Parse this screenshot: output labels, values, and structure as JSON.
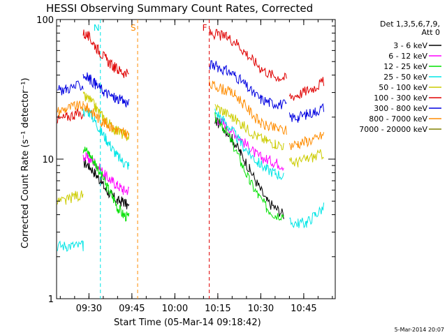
{
  "chart_data": {
    "type": "line",
    "title": "HESSI Observing Summary Count Rates, Corrected",
    "xlabel": "Start Time (05-Mar-14 09:18:42)",
    "ylabel": "Corrected Count Rate (s⁻¹ detector⁻¹)",
    "x_range": [
      "09:18:42",
      "10:56:00"
    ],
    "y_range": [
      1,
      100
    ],
    "y_scale": "log",
    "x_ticks": [
      "09:30",
      "09:45",
      "10:00",
      "10:15",
      "10:30",
      "10:45"
    ],
    "y_ticks": [
      "1",
      "10",
      "100"
    ],
    "legend_header": [
      "Det 1,3,5,6,7,9,",
      "Att 0"
    ],
    "legend_position": "right",
    "timestamp": "5-Mar-2014 20:07",
    "markers": [
      {
        "label": "N",
        "time": "09:34",
        "color": "#00e5e5"
      },
      {
        "label": "S",
        "time": "09:47",
        "color": "#ff8c00"
      },
      {
        "label": "F",
        "time": "10:12",
        "color": "#e00000"
      }
    ],
    "series": [
      {
        "name": "3 - 6 keV",
        "color": "#000000",
        "segments": [
          {
            "t": [
              "09:28",
              "09:30",
              "09:32",
              "09:34",
              "09:36",
              "09:38",
              "09:40",
              "09:42",
              "09:44"
            ],
            "y": [
              9.5,
              9.0,
              8.0,
              7.0,
              6.0,
              5.5,
              5.0,
              5.0,
              4.5
            ]
          },
          {
            "t": [
              "10:14",
              "10:17",
              "10:20",
              "10:23",
              "10:26",
              "10:29",
              "10:32",
              "10:35",
              "10:38"
            ],
            "y": [
              19,
              17,
              14,
              11,
              8.5,
              6.5,
              5.0,
              4.5,
              4.0
            ]
          }
        ]
      },
      {
        "name": "6 - 12 keV",
        "color": "#ff00ff",
        "segments": [
          {
            "t": [
              "09:28",
              "09:30",
              "09:32",
              "09:34",
              "09:36",
              "09:38",
              "09:40",
              "09:42",
              "09:44"
            ],
            "y": [
              10.5,
              10.0,
              9.5,
              8.5,
              7.5,
              7.0,
              6.5,
              6.0,
              6.0
            ]
          },
          {
            "t": [
              "10:14",
              "10:17",
              "10:20",
              "10:23",
              "10:26",
              "10:29",
              "10:32",
              "10:35",
              "10:38"
            ],
            "y": [
              20,
              18,
              16,
              14,
              12,
              10.5,
              10,
              9.5,
              9
            ]
          }
        ]
      },
      {
        "name": "12 - 25 keV",
        "color": "#00e000",
        "segments": [
          {
            "t": [
              "09:28",
              "09:30",
              "09:32",
              "09:34",
              "09:36",
              "09:38",
              "09:40",
              "09:42",
              "09:44"
            ],
            "y": [
              12,
              11,
              9.5,
              8.0,
              6.5,
              5.5,
              4.5,
              4.0,
              3.8
            ]
          },
          {
            "t": [
              "10:14",
              "10:17",
              "10:20",
              "10:23",
              "10:26",
              "10:29",
              "10:32",
              "10:35",
              "10:38"
            ],
            "y": [
              20,
              17,
              13,
              9.5,
              7.0,
              5.5,
              4.5,
              4.0,
              4.0
            ]
          }
        ]
      },
      {
        "name": "25 - 50 keV",
        "color": "#00e5e5",
        "segments": [
          {
            "t": [
              "09:19",
              "09:22",
              "09:25",
              "09:28",
              "09:28"
            ],
            "y": [
              2.4,
              2.4,
              2.4,
              2.4,
              2.4
            ]
          },
          {
            "t": [
              "09:28",
              "09:30",
              "09:32",
              "09:34",
              "09:36",
              "09:38",
              "09:40",
              "09:42",
              "09:44"
            ],
            "y": [
              22,
              22,
              19,
              16,
              14,
              12,
              10.5,
              9.5,
              9.0
            ]
          },
          {
            "t": [
              "10:14",
              "10:17",
              "10:20",
              "10:23",
              "10:26",
              "10:29",
              "10:32",
              "10:35",
              "10:38"
            ],
            "y": [
              22,
              19,
              16,
              13,
              11,
              9.5,
              8.5,
              8.0,
              7.5
            ]
          },
          {
            "t": [
              "10:40",
              "10:43",
              "10:46",
              "10:49",
              "10:52"
            ],
            "y": [
              3.5,
              3.5,
              3.5,
              4.0,
              4.5
            ]
          }
        ]
      },
      {
        "name": "50 - 100 keV",
        "color": "#cccc00",
        "segments": [
          {
            "t": [
              "09:19",
              "09:22",
              "09:25",
              "09:28"
            ],
            "y": [
              5.0,
              5.0,
              5.5,
              5.5
            ]
          },
          {
            "t": [
              "09:28",
              "09:30",
              "09:32",
              "09:34",
              "09:36",
              "09:38",
              "09:40",
              "09:42",
              "09:44"
            ],
            "y": [
              28,
              27,
              24,
              21,
              19,
              17,
              16,
              15,
              14.5
            ]
          },
          {
            "t": [
              "10:14",
              "10:17",
              "10:20",
              "10:23",
              "10:26",
              "10:29",
              "10:32",
              "10:35",
              "10:38"
            ],
            "y": [
              24,
              22,
              20,
              18,
              16,
              14.5,
              13.5,
              13,
              12.5
            ]
          },
          {
            "t": [
              "10:40",
              "10:43",
              "10:46",
              "10:49",
              "10:52"
            ],
            "y": [
              9.5,
              9.5,
              10,
              10.5,
              11
            ]
          }
        ]
      },
      {
        "name": "100 - 300 keV",
        "color": "#e00000",
        "segments": [
          {
            "t": [
              "09:19",
              "09:22",
              "09:25",
              "09:28"
            ],
            "y": [
              19,
              20,
              21,
              21
            ]
          },
          {
            "t": [
              "09:28",
              "09:30",
              "09:32",
              "09:34",
              "09:36",
              "09:38",
              "09:40",
              "09:42",
              "09:44"
            ],
            "y": [
              80,
              75,
              66,
              58,
              52,
              47,
              44,
              42,
              40
            ]
          },
          {
            "t": [
              "10:12",
              "10:15",
              "10:18",
              "10:21",
              "10:24",
              "10:27",
              "10:30",
              "10:33",
              "10:36",
              "10:39"
            ],
            "y": [
              80,
              78,
              75,
              70,
              60,
              52,
              45,
              41,
              39,
              38
            ]
          },
          {
            "t": [
              "10:40",
              "10:43",
              "10:46",
              "10:49",
              "10:52"
            ],
            "y": [
              28,
              29,
              31,
              33,
              36
            ]
          }
        ]
      },
      {
        "name": "300 - 800 keV",
        "color": "#0000e0",
        "segments": [
          {
            "t": [
              "09:19",
              "09:22",
              "09:25",
              "09:28"
            ],
            "y": [
              31,
              32,
              33,
              34
            ]
          },
          {
            "t": [
              "09:28",
              "09:30",
              "09:32",
              "09:34",
              "09:36",
              "09:38",
              "09:40",
              "09:42",
              "09:44"
            ],
            "y": [
              40,
              38,
              35,
              32,
              30,
              28,
              27,
              26,
              25
            ]
          },
          {
            "t": [
              "10:12",
              "10:15",
              "10:18",
              "10:21",
              "10:24",
              "10:27",
              "10:30",
              "10:33",
              "10:36",
              "10:39"
            ],
            "y": [
              48,
              46,
              43,
              40,
              35,
              30,
              27,
              25.5,
              25,
              24.5
            ]
          },
          {
            "t": [
              "10:40",
              "10:43",
              "10:46",
              "10:49",
              "10:52"
            ],
            "y": [
              20,
              20,
              21,
              22,
              23.5
            ]
          }
        ]
      },
      {
        "name": "800 - 7000 keV",
        "color": "#ff8c00",
        "segments": [
          {
            "t": [
              "09:19",
              "09:22",
              "09:25",
              "09:28"
            ],
            "y": [
              22,
              23,
              24,
              24
            ]
          },
          {
            "t": [
              "09:28",
              "09:30",
              "09:32",
              "09:34",
              "09:36",
              "09:38",
              "09:40",
              "09:42",
              "09:44"
            ],
            "y": [
              24,
              23,
              21,
              19,
              18,
              17,
              16,
              15.5,
              15
            ]
          },
          {
            "t": [
              "10:12",
              "10:15",
              "10:18",
              "10:21",
              "10:24",
              "10:27",
              "10:30",
              "10:33",
              "10:36",
              "10:39"
            ],
            "y": [
              34,
              33,
              31,
              29,
              25,
              21,
              18,
              17,
              16.5,
              16
            ]
          },
          {
            "t": [
              "10:40",
              "10:43",
              "10:46",
              "10:49",
              "10:52"
            ],
            "y": [
              12.5,
              13,
              13.5,
              14,
              15
            ]
          }
        ]
      },
      {
        "name": "7000 - 20000 keV",
        "color": "#808000",
        "segments": []
      }
    ]
  }
}
